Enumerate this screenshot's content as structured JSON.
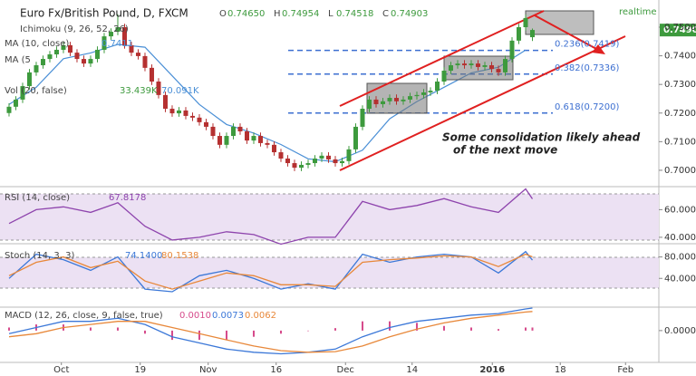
{
  "header": {
    "symbol": "Euro Fx/British Pound, D, FXCM",
    "ohlc": [
      {
        "label": "O",
        "value": "0.74650"
      },
      {
        "label": "H",
        "value": "0.74954"
      },
      {
        "label": "L",
        "value": "0.74518"
      },
      {
        "label": "C",
        "value": "0.74903"
      }
    ],
    "status": "realtime",
    "studies": [
      "Ichimoku (9, 26, 52, 26)",
      "MA (10, close)",
      "MA (5",
      "Vol (20, false)"
    ],
    "study_values": [
      "0.7411",
      "33.439K",
      "70.091K"
    ]
  },
  "chart_data": [
    {
      "type": "candlestick",
      "title": "Euro Fx/British Pound, D, FXCM",
      "open": [
        0.72,
        0.7222,
        0.7247,
        0.7294,
        0.7342,
        0.7367,
        0.7389,
        0.7405,
        0.7421,
        0.7437,
        0.7411,
        0.7389,
        0.7373,
        0.7389,
        0.7421,
        0.7468,
        0.7484,
        0.75,
        0.7437,
        0.7411,
        0.7399,
        0.7358,
        0.731,
        0.7263,
        0.7215,
        0.7199,
        0.7209,
        0.719,
        0.7184,
        0.7168,
        0.7152,
        0.712,
        0.7089,
        0.712,
        0.7152,
        0.7136,
        0.7104,
        0.712,
        0.7095,
        0.7089,
        0.7063,
        0.7041,
        0.7025,
        0.7009,
        0.7019,
        0.7025,
        0.7041,
        0.7051,
        0.7038,
        0.7025,
        0.7032,
        0.7073,
        0.7152,
        0.7215,
        0.7247,
        0.7231,
        0.7241,
        0.7253,
        0.7241,
        0.7247,
        0.7259,
        0.7263,
        0.7272,
        0.7278,
        0.731,
        0.7348,
        0.7367,
        0.7373,
        0.7367,
        0.7373,
        0.7361,
        0.7367,
        0.7354,
        0.7342,
        0.7389,
        0.7453,
        0.75,
        0.7465
      ],
      "high": [
        0.7234,
        0.7259,
        0.7306,
        0.7354,
        0.7379,
        0.7401,
        0.7417,
        0.7433,
        0.7449,
        0.7449,
        0.7423,
        0.7401,
        0.7401,
        0.7433,
        0.748,
        0.7496,
        0.7545,
        0.7512,
        0.7449,
        0.7423,
        0.7411,
        0.737,
        0.7322,
        0.7275,
        0.7227,
        0.7221,
        0.7221,
        0.7202,
        0.7196,
        0.718,
        0.7164,
        0.7132,
        0.7132,
        0.7164,
        0.7164,
        0.7148,
        0.7132,
        0.7132,
        0.7107,
        0.7101,
        0.7075,
        0.7053,
        0.7037,
        0.7031,
        0.7037,
        0.7053,
        0.7063,
        0.7063,
        0.705,
        0.7044,
        0.7085,
        0.7164,
        0.7227,
        0.7259,
        0.7259,
        0.7253,
        0.7265,
        0.7265,
        0.7259,
        0.7271,
        0.7275,
        0.7284,
        0.729,
        0.7322,
        0.736,
        0.7379,
        0.7385,
        0.7385,
        0.7385,
        0.7385,
        0.7379,
        0.7379,
        0.7366,
        0.7401,
        0.7465,
        0.7512,
        0.7544,
        0.74954
      ],
      "low": [
        0.7188,
        0.721,
        0.7235,
        0.7282,
        0.733,
        0.7355,
        0.7377,
        0.7393,
        0.7409,
        0.7399,
        0.7377,
        0.7361,
        0.7361,
        0.7377,
        0.7409,
        0.7456,
        0.7472,
        0.7425,
        0.7399,
        0.7387,
        0.7346,
        0.7298,
        0.7251,
        0.7203,
        0.7187,
        0.7187,
        0.7178,
        0.7172,
        0.7156,
        0.714,
        0.7108,
        0.7077,
        0.7077,
        0.7108,
        0.7124,
        0.7092,
        0.7092,
        0.7083,
        0.7077,
        0.7051,
        0.7029,
        0.7013,
        0.6997,
        0.6997,
        0.7007,
        0.7013,
        0.7029,
        0.7026,
        0.7013,
        0.7013,
        0.702,
        0.7061,
        0.714,
        0.7203,
        0.7219,
        0.7219,
        0.7229,
        0.7229,
        0.7229,
        0.7235,
        0.7247,
        0.7251,
        0.726,
        0.7266,
        0.7298,
        0.7336,
        0.7355,
        0.7355,
        0.7355,
        0.7349,
        0.7349,
        0.7342,
        0.733,
        0.733,
        0.7377,
        0.7441,
        0.7488,
        0.74518
      ],
      "close": [
        0.7222,
        0.7247,
        0.7294,
        0.7342,
        0.7367,
        0.7389,
        0.7405,
        0.7421,
        0.7437,
        0.7411,
        0.7389,
        0.7373,
        0.7389,
        0.7421,
        0.7468,
        0.7484,
        0.75,
        0.7437,
        0.7411,
        0.7399,
        0.7358,
        0.731,
        0.7263,
        0.7215,
        0.7199,
        0.7209,
        0.719,
        0.7184,
        0.7168,
        0.7152,
        0.712,
        0.7089,
        0.712,
        0.7152,
        0.7136,
        0.7104,
        0.712,
        0.7095,
        0.7089,
        0.7063,
        0.7041,
        0.7025,
        0.7009,
        0.7019,
        0.7025,
        0.7041,
        0.7051,
        0.7038,
        0.7025,
        0.7032,
        0.7073,
        0.7152,
        0.7215,
        0.7247,
        0.7231,
        0.7241,
        0.7253,
        0.7241,
        0.7247,
        0.7259,
        0.7263,
        0.7272,
        0.7278,
        0.731,
        0.7348,
        0.7367,
        0.7373,
        0.7367,
        0.7373,
        0.7361,
        0.7367,
        0.7354,
        0.7342,
        0.7389,
        0.7453,
        0.75,
        0.7532,
        0.74903
      ],
      "up_color": "#3d9a3d",
      "down_color": "#b53030",
      "ma": {
        "color": "#4a8fd6",
        "x": [
          0,
          4,
          8,
          12,
          16,
          20,
          24,
          28,
          32,
          36,
          40,
          44,
          48,
          52,
          56,
          60,
          64,
          68,
          72,
          76
        ],
        "values": [
          0.723,
          0.729,
          0.739,
          0.741,
          0.744,
          0.743,
          0.733,
          0.723,
          0.716,
          0.713,
          0.709,
          0.704,
          0.703,
          0.707,
          0.718,
          0.724,
          0.729,
          0.734,
          0.736,
          0.742
        ]
      },
      "fib_levels": [
        {
          "value": 0.7419,
          "label": "0.236(0.7419)"
        },
        {
          "value": 0.7336,
          "label": "0.382(0.7336)"
        },
        {
          "value": 0.72,
          "label": "0.618(0.7200)"
        }
      ],
      "last_price": {
        "value": 0.749,
        "label": "0.7490"
      },
      "annotation": [
        "Some consolidation likely ahead",
        "of the next move"
      ],
      "xlim": [
        -1.33,
        95.6
      ],
      "ylim": [
        0.6946,
        0.7595
      ],
      "xticks": [
        {
          "value": 7.7,
          "label": "Oct"
        },
        {
          "value": 19.3,
          "label": "19"
        },
        {
          "value": 29.3,
          "label": "Nov"
        },
        {
          "value": 39.3,
          "label": "16"
        },
        {
          "value": 49.5,
          "label": "Dec"
        },
        {
          "value": 59.3,
          "label": "14"
        },
        {
          "value": 71.1,
          "label": "2016"
        },
        {
          "value": 81.1,
          "label": "18"
        },
        {
          "value": 90.7,
          "label": "Feb"
        }
      ],
      "yticks": [
        {
          "value": 0.75,
          "label": "0.7500"
        },
        {
          "value": 0.74,
          "label": "0.7400"
        },
        {
          "value": 0.73,
          "label": "0.7300"
        },
        {
          "value": 0.72,
          "label": "0.7200"
        },
        {
          "value": 0.71,
          "label": "0.7100"
        },
        {
          "value": 0.7,
          "label": "0.7000"
        }
      ]
    },
    {
      "type": "line",
      "title": "RSI (14, close)",
      "readouts": [
        "67.8178"
      ],
      "x": [
        0,
        4,
        8,
        12,
        16,
        20,
        24,
        28,
        32,
        36,
        40,
        44,
        48,
        52,
        56,
        60,
        64,
        68,
        72,
        76,
        77
      ],
      "series": [
        {
          "color": "#8e44ad",
          "values": [
            50,
            60,
            62,
            58,
            65,
            48,
            38,
            40,
            44,
            42,
            35,
            40,
            40,
            66,
            60,
            63,
            68,
            62,
            58,
            75,
            67.8
          ]
        }
      ],
      "ylim": [
        36,
        76
      ],
      "yticks": [
        {
          "value": 60,
          "label": "60.0000"
        },
        {
          "value": 40,
          "label": "40.0000"
        }
      ]
    },
    {
      "type": "line",
      "title": "Stoch (14, 3, 3)",
      "readouts": [
        "74.1400",
        "80.1538"
      ],
      "x": [
        0,
        4,
        8,
        12,
        16,
        20,
        24,
        28,
        32,
        36,
        40,
        44,
        48,
        52,
        56,
        60,
        64,
        68,
        72,
        76,
        77
      ],
      "series": [
        {
          "color": "#3c78d8",
          "values": [
            40,
            85,
            75,
            55,
            80,
            20,
            15,
            45,
            55,
            40,
            20,
            30,
            20,
            85,
            70,
            80,
            85,
            80,
            50,
            90,
            74.1
          ]
        },
        {
          "color": "#e8883a",
          "values": [
            45,
            70,
            80,
            60,
            72,
            35,
            20,
            35,
            50,
            45,
            28,
            28,
            25,
            70,
            75,
            78,
            82,
            80,
            62,
            85,
            80.2
          ]
        }
      ],
      "ylim": [
        -12,
        103
      ],
      "yticks": [
        {
          "value": 80,
          "label": "80.0000"
        },
        {
          "value": 40,
          "label": "40.0000"
        }
      ]
    },
    {
      "type": "macd",
      "title": "MACD (12, 26, close, 9, false, true)",
      "readouts": [
        "0.0010",
        "0.0073",
        "0.0062"
      ],
      "x": [
        0,
        4,
        8,
        12,
        16,
        20,
        24,
        28,
        32,
        36,
        40,
        44,
        48,
        52,
        56,
        60,
        64,
        68,
        72,
        76,
        77
      ],
      "series": [
        {
          "color": "#d64a8b",
          "values": [
            0.001,
            0.002,
            0.002,
            0.001,
            0.001,
            -0.001,
            -0.003,
            -0.003,
            -0.003,
            -0.002,
            -0.001,
            0,
            0.0008,
            0.003,
            0.003,
            0.0025,
            0.0015,
            0.001,
            0.0005,
            0.001,
            0.001
          ]
        },
        {
          "color": "#3c78d8",
          "values": [
            -0.001,
            0.001,
            0.003,
            0.003,
            0.004,
            0.002,
            -0.002,
            -0.004,
            -0.006,
            -0.007,
            -0.0075,
            -0.007,
            -0.006,
            -0.002,
            0.001,
            0.003,
            0.004,
            0.005,
            0.0055,
            0.007,
            0.0073
          ]
        },
        {
          "color": "#e8883a",
          "values": [
            -0.002,
            -0.001,
            0.001,
            0.002,
            0.003,
            0.003,
            0.001,
            -0.001,
            -0.003,
            -0.005,
            -0.0065,
            -0.007,
            -0.0068,
            -0.005,
            -0.002,
            0.0005,
            0.0025,
            0.004,
            0.005,
            0.006,
            0.0062
          ]
        }
      ],
      "ylim": [
        -0.0103,
        0.0073
      ],
      "yticks": [
        {
          "value": 0,
          "label": "0.0000"
        }
      ]
    }
  ]
}
